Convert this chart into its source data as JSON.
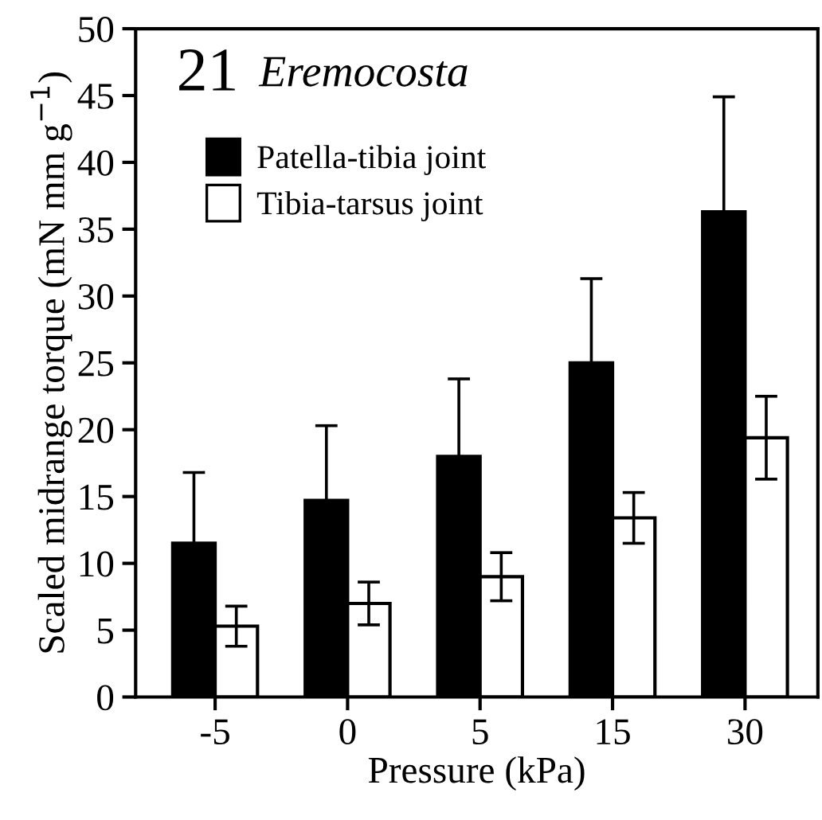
{
  "chart_data": {
    "type": "bar",
    "title": "21",
    "subtitle": "Eremocosta",
    "xlabel": "Pressure (kPa)",
    "ylabel": "Scaled midrange torque (mN mm g$^{−1}$)",
    "categories": [
      "-5",
      "0",
      "5",
      "15",
      "30"
    ],
    "series": [
      {
        "name": "Patella-tibia joint",
        "color": "#000000",
        "values": [
          11.5,
          14.7,
          18.0,
          25.0,
          36.3
        ],
        "errors": [
          5.3,
          5.6,
          5.8,
          6.3,
          8.6
        ]
      },
      {
        "name": "Tibia-tarsus joint",
        "color": "#ffffff",
        "values": [
          5.3,
          7.0,
          9.0,
          13.4,
          19.4
        ],
        "errors": [
          1.5,
          1.6,
          1.8,
          1.9,
          3.1
        ]
      }
    ],
    "ylim": [
      0,
      50
    ],
    "yticks": [
      0,
      5,
      10,
      15,
      20,
      25,
      30,
      35,
      40,
      45,
      50
    ],
    "grid": false,
    "legend": "top left"
  }
}
